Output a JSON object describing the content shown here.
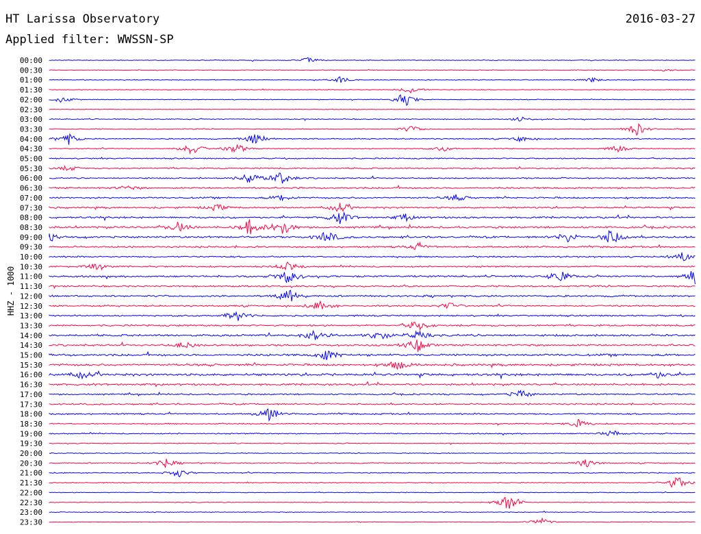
{
  "header": {
    "station": "HT Larissa Observatory",
    "date": "2016-03-27",
    "filter": "Applied filter: WWSSN-SP",
    "channel_label": "HHZ - 1000"
  },
  "chart_data": {
    "type": "line",
    "title": "HT Larissa Observatory",
    "subtitle": "Applied filter: WWSSN-SP",
    "ylabel": "HHZ - 1000",
    "date": "2016-03-27",
    "row_labels": [
      "00:00",
      "00:30",
      "01:00",
      "01:30",
      "02:00",
      "02:30",
      "03:00",
      "03:30",
      "04:00",
      "04:30",
      "05:00",
      "05:30",
      "06:00",
      "06:30",
      "07:00",
      "07:30",
      "08:00",
      "08:30",
      "09:00",
      "09:30",
      "10:00",
      "10:30",
      "11:00",
      "11:30",
      "12:00",
      "12:30",
      "13:00",
      "13:30",
      "14:00",
      "14:30",
      "15:00",
      "15:30",
      "16:00",
      "16:30",
      "17:00",
      "17:30",
      "18:00",
      "18:30",
      "19:00",
      "19:30",
      "20:00",
      "20:30",
      "21:00",
      "21:30",
      "22:00",
      "22:30",
      "23:00",
      "23:30"
    ],
    "row_noise": [
      0.3,
      0.25,
      0.3,
      0.3,
      0.3,
      0.25,
      0.4,
      0.35,
      0.45,
      0.4,
      0.5,
      0.55,
      0.55,
      0.7,
      0.65,
      0.7,
      0.75,
      0.8,
      0.8,
      0.7,
      0.65,
      0.65,
      0.75,
      0.65,
      0.75,
      0.65,
      0.65,
      0.7,
      0.85,
      0.75,
      0.9,
      0.9,
      1.0,
      0.8,
      0.6,
      0.6,
      0.6,
      0.5,
      0.5,
      0.35,
      0.35,
      0.45,
      0.4,
      0.35,
      0.3,
      0.3,
      0.3,
      0.25
    ],
    "events": [
      [
        0,
        0.4,
        1.2
      ],
      [
        1,
        0.95,
        0.5
      ],
      [
        2,
        0.45,
        1.5
      ],
      [
        2,
        0.84,
        1.0
      ],
      [
        3,
        0.56,
        1.8
      ],
      [
        4,
        0.55,
        3.5
      ],
      [
        4,
        0.02,
        1.5
      ],
      [
        6,
        0.73,
        1.0
      ],
      [
        7,
        0.56,
        1.5
      ],
      [
        7,
        0.91,
        3.0
      ],
      [
        8,
        0.03,
        2.5
      ],
      [
        8,
        0.32,
        3.0
      ],
      [
        8,
        0.73,
        1.2
      ],
      [
        9,
        0.22,
        3.0
      ],
      [
        9,
        0.29,
        2.5
      ],
      [
        9,
        0.61,
        1.2
      ],
      [
        9,
        0.88,
        1.5
      ],
      [
        11,
        0.03,
        1.2
      ],
      [
        12,
        0.31,
        3.0
      ],
      [
        12,
        0.36,
        3.5
      ],
      [
        13,
        0.12,
        1.0
      ],
      [
        14,
        0.36,
        1.5
      ],
      [
        14,
        0.63,
        1.5
      ],
      [
        15,
        0.26,
        1.5
      ],
      [
        15,
        0.45,
        2.0
      ],
      [
        16,
        0.45,
        3.0
      ],
      [
        16,
        0.55,
        1.5
      ],
      [
        17,
        0.2,
        2.5
      ],
      [
        17,
        0.31,
        3.5
      ],
      [
        17,
        0.36,
        4.0
      ],
      [
        18,
        0.0,
        2.0
      ],
      [
        18,
        0.43,
        3.0
      ],
      [
        18,
        0.8,
        2.5
      ],
      [
        18,
        0.87,
        4.0
      ],
      [
        19,
        0.57,
        1.5
      ],
      [
        20,
        0.98,
        2.0
      ],
      [
        21,
        0.07,
        1.5
      ],
      [
        21,
        0.37,
        2.0
      ],
      [
        22,
        0.37,
        3.5
      ],
      [
        22,
        0.79,
        3.0
      ],
      [
        22,
        1.0,
        4.0
      ],
      [
        24,
        0.37,
        3.5
      ],
      [
        25,
        0.42,
        2.5
      ],
      [
        25,
        0.62,
        1.5
      ],
      [
        26,
        0.29,
        2.5
      ],
      [
        27,
        0.57,
        2.5
      ],
      [
        28,
        0.41,
        2.5
      ],
      [
        28,
        0.51,
        2.5
      ],
      [
        28,
        0.57,
        2.0
      ],
      [
        29,
        0.21,
        1.5
      ],
      [
        29,
        0.57,
        3.0
      ],
      [
        30,
        0.43,
        2.5
      ],
      [
        31,
        0.54,
        2.5
      ],
      [
        32,
        0.05,
        1.5
      ],
      [
        32,
        0.94,
        1.5
      ],
      [
        34,
        0.73,
        2.0
      ],
      [
        36,
        0.34,
        3.0
      ],
      [
        37,
        0.82,
        2.0
      ],
      [
        38,
        0.87,
        1.5
      ],
      [
        41,
        0.18,
        2.0
      ],
      [
        41,
        0.83,
        2.0
      ],
      [
        42,
        0.2,
        2.0
      ],
      [
        43,
        0.97,
        3.5
      ],
      [
        45,
        0.71,
        4.0
      ],
      [
        47,
        0.76,
        2.0
      ]
    ]
  },
  "colors": {
    "even_row": "#0000ff",
    "odd_row": "#ff0040"
  }
}
